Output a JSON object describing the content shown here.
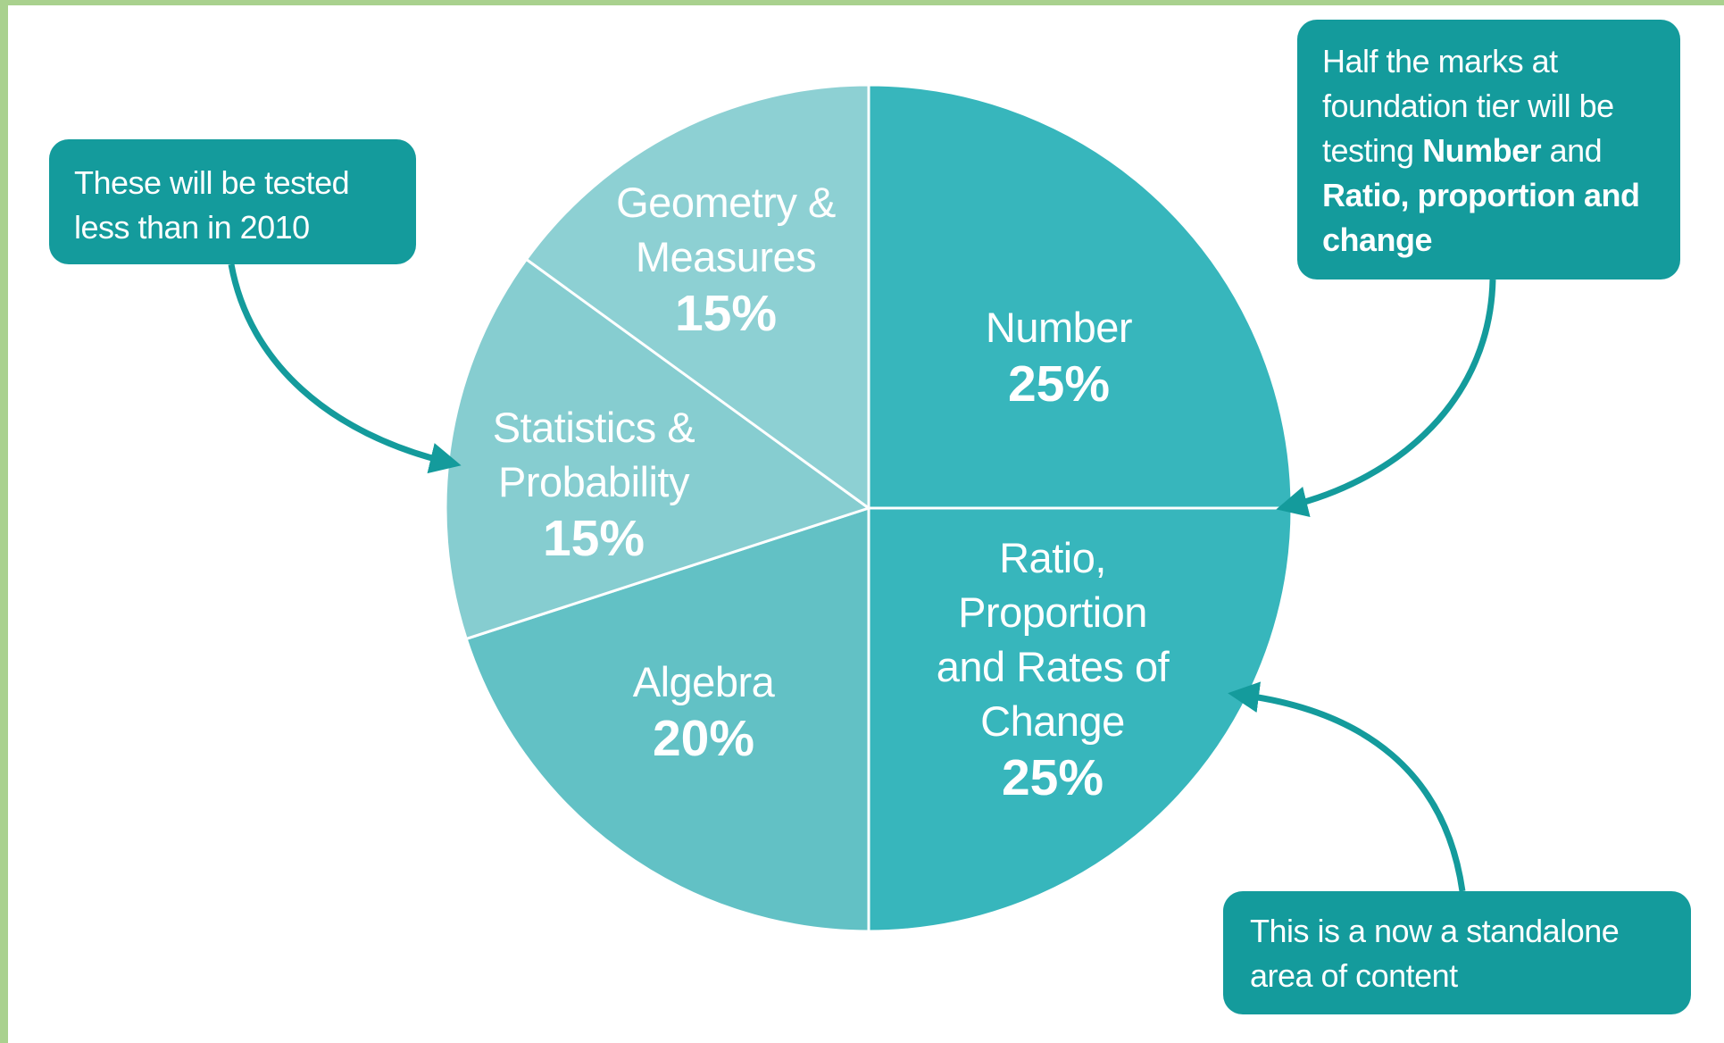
{
  "chart_data": {
    "type": "pie",
    "categories": [
      "Number",
      "Ratio, Proportion and Rates of Change",
      "Algebra",
      "Statistics & Probability",
      "Geometry & Measures"
    ],
    "values": [
      25,
      25,
      20,
      15,
      15
    ],
    "value_labels": [
      "25%",
      "25%",
      "20%",
      "15%",
      "15%"
    ],
    "colors": [
      "#37b6bc",
      "#37b6bc",
      "#62c1c5",
      "#86cdd0",
      "#8dd0d3"
    ],
    "annotations": [
      {
        "parts": [
          {
            "text": "These will be tested less than in 2010",
            "bold": false
          }
        ]
      },
      {
        "parts": [
          {
            "text": "Half the marks at foundation tier will be testing ",
            "bold": false
          },
          {
            "text": "Number",
            "bold": true
          },
          {
            "text": " and ",
            "bold": false
          },
          {
            "text": "Ratio, proportion and change",
            "bold": true
          }
        ]
      },
      {
        "parts": [
          {
            "text": "This is a now a standalone area of content",
            "bold": false
          }
        ]
      }
    ]
  }
}
